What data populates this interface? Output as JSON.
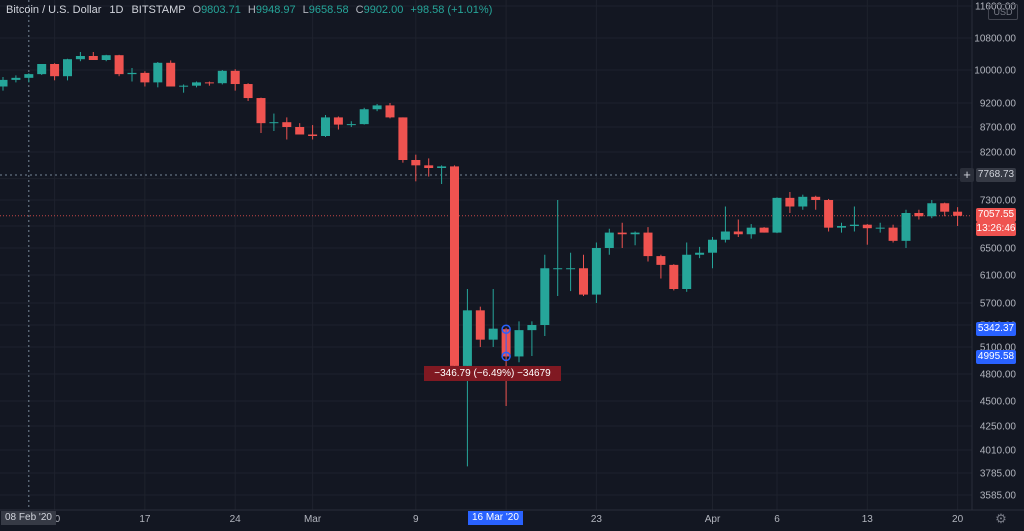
{
  "legend": {
    "symbol": "Bitcoin / U.S. Dollar",
    "interval": "1D",
    "exchange": "BITSTAMP",
    "open_label": "O",
    "open": "9803.71",
    "high_label": "H",
    "high": "9948.97",
    "low_label": "L",
    "low": "9658.58",
    "close_label": "C",
    "close": "9902.00",
    "change": "+98.58 (+1.01%)"
  },
  "currency_badge": "USD",
  "price_axis_tags": {
    "crosshair_price": "7768.73",
    "last_price": "7057.55",
    "countdown": "13:26:46",
    "measure_high": "5342.37",
    "measure_low": "4995.58",
    "add_button": "+"
  },
  "time_axis_tags": {
    "crosshair_date": "08 Feb '20",
    "selected_date": "16 Mar '20"
  },
  "measure_label": "−346.79 (−6.49%) −34679",
  "settings_icon": "gear-icon",
  "colors": {
    "background": "#131722",
    "up": "#26a69a",
    "down": "#ef5350",
    "grid": "#1e222d",
    "axis_text": "#b2b5be",
    "accent": "#2962ff"
  },
  "chart_data": {
    "type": "candlestick",
    "title": "Bitcoin / U.S. Dollar",
    "grid": true,
    "y_axis": {
      "position": "right",
      "ticks": [
        3585,
        3785,
        4010,
        4250,
        4500,
        4800,
        5100,
        5400,
        5700,
        6100,
        6500,
        6900,
        7300,
        7700,
        8200,
        8700,
        9200,
        10000,
        10800,
        11600
      ],
      "tick_labels": [
        "3585.00",
        "3785.00",
        "4010.00",
        "4250.00",
        "4500.00",
        "4800.00",
        "5100.00",
        "5400.00",
        "5700.00",
        "6100.00",
        "6500.00",
        "6900.00",
        "7300.00",
        "7700.00",
        "8200.00",
        "8700.00",
        "9200.00",
        "10000.00",
        "10800.00",
        "11600.00"
      ],
      "ylim": [
        3500,
        11800
      ]
    },
    "x_axis": {
      "ticks": [
        "2020-02-10",
        "2020-02-17",
        "2020-02-24",
        "2020-03-01",
        "2020-03-09",
        "2020-03-16",
        "2020-03-23",
        "2020-04-01",
        "2020-04-06",
        "2020-04-13",
        "2020-04-20"
      ],
      "tick_labels": [
        "10",
        "17",
        "24",
        "Mar",
        "9",
        "16",
        "23",
        "Apr",
        "6",
        "13",
        "20"
      ]
    },
    "candles": [
      {
        "date": "2020-02-06",
        "o": 9600,
        "h": 9830,
        "l": 9500,
        "c": 9760
      },
      {
        "date": "2020-02-07",
        "o": 9760,
        "h": 9870,
        "l": 9700,
        "c": 9810
      },
      {
        "date": "2020-02-08",
        "o": 9810,
        "h": 9920,
        "l": 9700,
        "c": 9900
      },
      {
        "date": "2020-02-09",
        "o": 9900,
        "h": 10150,
        "l": 9880,
        "c": 10150
      },
      {
        "date": "2020-02-10",
        "o": 10150,
        "h": 10170,
        "l": 9750,
        "c": 9850
      },
      {
        "date": "2020-02-11",
        "o": 9850,
        "h": 10280,
        "l": 9750,
        "c": 10270
      },
      {
        "date": "2020-02-12",
        "o": 10270,
        "h": 10450,
        "l": 10220,
        "c": 10350
      },
      {
        "date": "2020-02-13",
        "o": 10350,
        "h": 10450,
        "l": 10250,
        "c": 10250
      },
      {
        "date": "2020-02-14",
        "o": 10250,
        "h": 10380,
        "l": 10220,
        "c": 10370
      },
      {
        "date": "2020-02-15",
        "o": 10370,
        "h": 10380,
        "l": 9850,
        "c": 9900
      },
      {
        "date": "2020-02-16",
        "o": 9900,
        "h": 10050,
        "l": 9720,
        "c": 9930
      },
      {
        "date": "2020-02-17",
        "o": 9930,
        "h": 9970,
        "l": 9600,
        "c": 9700
      },
      {
        "date": "2020-02-18",
        "o": 9700,
        "h": 10200,
        "l": 9580,
        "c": 10180
      },
      {
        "date": "2020-02-19",
        "o": 10180,
        "h": 10240,
        "l": 9600,
        "c": 9600
      },
      {
        "date": "2020-02-20",
        "o": 9600,
        "h": 9650,
        "l": 9450,
        "c": 9620
      },
      {
        "date": "2020-02-21",
        "o": 9620,
        "h": 9720,
        "l": 9580,
        "c": 9700
      },
      {
        "date": "2020-02-22",
        "o": 9700,
        "h": 9720,
        "l": 9620,
        "c": 9680
      },
      {
        "date": "2020-02-23",
        "o": 9680,
        "h": 10000,
        "l": 9650,
        "c": 9980
      },
      {
        "date": "2020-02-24",
        "o": 9980,
        "h": 10020,
        "l": 9500,
        "c": 9660
      },
      {
        "date": "2020-02-25",
        "o": 9660,
        "h": 9680,
        "l": 9250,
        "c": 9320
      },
      {
        "date": "2020-02-26",
        "o": 9320,
        "h": 9330,
        "l": 8580,
        "c": 8780
      },
      {
        "date": "2020-02-27",
        "o": 8780,
        "h": 8980,
        "l": 8620,
        "c": 8800
      },
      {
        "date": "2020-02-28",
        "o": 8800,
        "h": 8900,
        "l": 8450,
        "c": 8700
      },
      {
        "date": "2020-02-29",
        "o": 8700,
        "h": 8780,
        "l": 8550,
        "c": 8550
      },
      {
        "date": "2020-03-01",
        "o": 8550,
        "h": 8740,
        "l": 8450,
        "c": 8520
      },
      {
        "date": "2020-03-02",
        "o": 8520,
        "h": 8950,
        "l": 8500,
        "c": 8900
      },
      {
        "date": "2020-03-03",
        "o": 8900,
        "h": 8920,
        "l": 8650,
        "c": 8750
      },
      {
        "date": "2020-03-04",
        "o": 8750,
        "h": 8820,
        "l": 8700,
        "c": 8760
      },
      {
        "date": "2020-03-05",
        "o": 8760,
        "h": 9100,
        "l": 8750,
        "c": 9070
      },
      {
        "date": "2020-03-06",
        "o": 9070,
        "h": 9180,
        "l": 9030,
        "c": 9150
      },
      {
        "date": "2020-03-07",
        "o": 9150,
        "h": 9200,
        "l": 8880,
        "c": 8900
      },
      {
        "date": "2020-03-08",
        "o": 8900,
        "h": 8900,
        "l": 8000,
        "c": 8050
      },
      {
        "date": "2020-03-09",
        "o": 8050,
        "h": 8150,
        "l": 7650,
        "c": 7950
      },
      {
        "date": "2020-03-10",
        "o": 7950,
        "h": 8080,
        "l": 7740,
        "c": 7900
      },
      {
        "date": "2020-03-11",
        "o": 7900,
        "h": 7950,
        "l": 7600,
        "c": 7930
      },
      {
        "date": "2020-03-12",
        "o": 7930,
        "h": 7950,
        "l": 4800,
        "c": 4890
      },
      {
        "date": "2020-03-13",
        "o": 4890,
        "h": 5900,
        "l": 3850,
        "c": 5600
      },
      {
        "date": "2020-03-14",
        "o": 5600,
        "h": 5650,
        "l": 5100,
        "c": 5200
      },
      {
        "date": "2020-03-15",
        "o": 5200,
        "h": 5900,
        "l": 5100,
        "c": 5350
      },
      {
        "date": "2020-03-16",
        "o": 5342,
        "h": 5360,
        "l": 4450,
        "c": 4995
      },
      {
        "date": "2020-03-17",
        "o": 4995,
        "h": 5450,
        "l": 4930,
        "c": 5330
      },
      {
        "date": "2020-03-18",
        "o": 5330,
        "h": 5450,
        "l": 5000,
        "c": 5400
      },
      {
        "date": "2020-03-19",
        "o": 5400,
        "h": 6400,
        "l": 5250,
        "c": 6200
      },
      {
        "date": "2020-03-20",
        "o": 6200,
        "h": 7300,
        "l": 5800,
        "c": 6200
      },
      {
        "date": "2020-03-21",
        "o": 6200,
        "h": 6430,
        "l": 5870,
        "c": 6200
      },
      {
        "date": "2020-03-22",
        "o": 6200,
        "h": 6400,
        "l": 5800,
        "c": 5820
      },
      {
        "date": "2020-03-23",
        "o": 5820,
        "h": 6600,
        "l": 5700,
        "c": 6500
      },
      {
        "date": "2020-03-24",
        "o": 6500,
        "h": 6850,
        "l": 6400,
        "c": 6780
      },
      {
        "date": "2020-03-25",
        "o": 6780,
        "h": 6950,
        "l": 6500,
        "c": 6750
      },
      {
        "date": "2020-03-26",
        "o": 6750,
        "h": 6800,
        "l": 6550,
        "c": 6780
      },
      {
        "date": "2020-03-27",
        "o": 6780,
        "h": 6880,
        "l": 6300,
        "c": 6380
      },
      {
        "date": "2020-03-28",
        "o": 6380,
        "h": 6400,
        "l": 6050,
        "c": 6250
      },
      {
        "date": "2020-03-29",
        "o": 6250,
        "h": 6260,
        "l": 5880,
        "c": 5900
      },
      {
        "date": "2020-03-30",
        "o": 5900,
        "h": 6600,
        "l": 5860,
        "c": 6400
      },
      {
        "date": "2020-03-31",
        "o": 6400,
        "h": 6520,
        "l": 6350,
        "c": 6430
      },
      {
        "date": "2020-04-01",
        "o": 6430,
        "h": 6700,
        "l": 6200,
        "c": 6650
      },
      {
        "date": "2020-04-02",
        "o": 6650,
        "h": 7200,
        "l": 6600,
        "c": 6800
      },
      {
        "date": "2020-04-03",
        "o": 6800,
        "h": 7000,
        "l": 6700,
        "c": 6750
      },
      {
        "date": "2020-04-04",
        "o": 6750,
        "h": 6930,
        "l": 6670,
        "c": 6870
      },
      {
        "date": "2020-04-05",
        "o": 6870,
        "h": 6880,
        "l": 6780,
        "c": 6780
      },
      {
        "date": "2020-04-06",
        "o": 6780,
        "h": 7350,
        "l": 6770,
        "c": 7340
      },
      {
        "date": "2020-04-07",
        "o": 7340,
        "h": 7450,
        "l": 7100,
        "c": 7200
      },
      {
        "date": "2020-04-08",
        "o": 7200,
        "h": 7400,
        "l": 7150,
        "c": 7360
      },
      {
        "date": "2020-04-09",
        "o": 7360,
        "h": 7380,
        "l": 7150,
        "c": 7300
      },
      {
        "date": "2020-04-10",
        "o": 7300,
        "h": 7320,
        "l": 6800,
        "c": 6870
      },
      {
        "date": "2020-04-11",
        "o": 6870,
        "h": 6950,
        "l": 6780,
        "c": 6900
      },
      {
        "date": "2020-04-12",
        "o": 6900,
        "h": 7200,
        "l": 6800,
        "c": 6920
      },
      {
        "date": "2020-04-13",
        "o": 6920,
        "h": 6930,
        "l": 6560,
        "c": 6860
      },
      {
        "date": "2020-04-14",
        "o": 6860,
        "h": 6950,
        "l": 6780,
        "c": 6870
      },
      {
        "date": "2020-04-15",
        "o": 6870,
        "h": 6920,
        "l": 6600,
        "c": 6630
      },
      {
        "date": "2020-04-16",
        "o": 6630,
        "h": 7150,
        "l": 6500,
        "c": 7100
      },
      {
        "date": "2020-04-17",
        "o": 7100,
        "h": 7150,
        "l": 7000,
        "c": 7050
      },
      {
        "date": "2020-04-18",
        "o": 7050,
        "h": 7300,
        "l": 7020,
        "c": 7250
      },
      {
        "date": "2020-04-19",
        "o": 7250,
        "h": 7260,
        "l": 7050,
        "c": 7120
      },
      {
        "date": "2020-04-20",
        "o": 7120,
        "h": 7190,
        "l": 6900,
        "c": 7057
      }
    ]
  }
}
